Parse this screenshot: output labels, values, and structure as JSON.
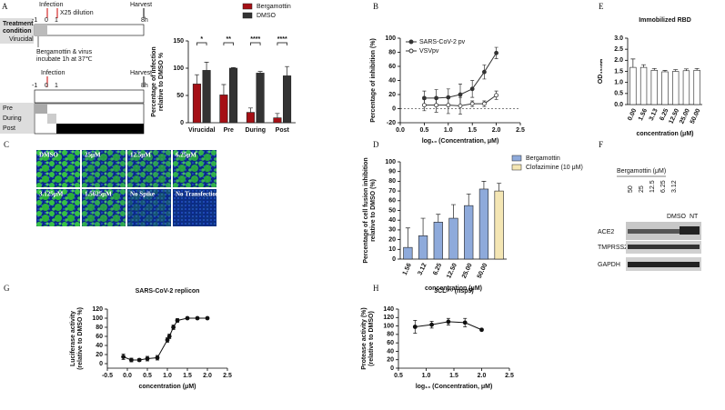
{
  "chart_data": [
    {
      "type": "bar",
      "categories": [
        "Virucidal",
        "Pre",
        "During",
        "Post"
      ],
      "series": [
        {
          "name": "Bergamottin",
          "color": "#a50f15",
          "values": [
            71,
            51,
            19,
            9
          ],
          "errors": [
            17,
            19,
            8,
            8
          ]
        },
        {
          "name": "DMSO",
          "color": "#333333",
          "values": [
            96,
            100,
            91,
            86
          ],
          "errors": [
            15,
            1,
            3,
            17
          ]
        }
      ],
      "annotations": [
        "*",
        "**",
        "****",
        "****"
      ],
      "ylabel": [
        "Percentage of infection",
        "relative to DMSO %"
      ],
      "ylim": [
        0,
        150
      ],
      "yticks": [
        0,
        50,
        100,
        150
      ],
      "legend": "top-outside"
    },
    {
      "type": "line",
      "x": [
        0.5,
        0.75,
        1.0,
        1.25,
        1.5,
        1.75,
        2.0
      ],
      "series": [
        {
          "name": "SARS-CoV-2 pv",
          "color": "#333333",
          "marker": "filled",
          "values": [
            15,
            15,
            16,
            20,
            28,
            52,
            79
          ],
          "errors": [
            10,
            12,
            12,
            15,
            12,
            10,
            8
          ]
        },
        {
          "name": "VSVpv",
          "color": "#333333",
          "marker": "open",
          "values": [
            5,
            5,
            5,
            4,
            7,
            7,
            19
          ],
          "errors": [
            8,
            10,
            12,
            12,
            4,
            4,
            6
          ]
        }
      ],
      "xlabel": "log₁₀ (Concentration, μM)",
      "ylabel": [
        "Percentage of inhibition (%)"
      ],
      "xlim": [
        0,
        2.5
      ],
      "xticks": [
        {
          "value": 0,
          "label": "0.0"
        },
        0.5,
        {
          "value": 1,
          "label": "1.0"
        },
        1.5,
        {
          "value": 2,
          "label": "2.0"
        },
        2.5
      ],
      "ylim": [
        -20,
        100
      ],
      "yticks": [
        -20,
        0,
        20,
        40,
        60,
        80,
        100
      ],
      "legend": "top-left"
    },
    {
      "type": "bar",
      "title": "Immobilized RBD",
      "categories": [
        "0.00",
        "1.56",
        "3.13",
        "6.25",
        "12.50",
        "25.00",
        "50.00"
      ],
      "values": [
        1.68,
        1.68,
        1.55,
        1.48,
        1.5,
        1.53,
        1.55
      ],
      "errors": [
        0.38,
        0.12,
        0.08,
        0.06,
        0.08,
        0.08,
        0.08
      ],
      "color": "#ffffff",
      "ylabel": [
        "OD₄₅₀ₙₘ"
      ],
      "xlabel": "concentration (μM)",
      "ylim": [
        0,
        3
      ],
      "yticks": [
        {
          "value": 0,
          "label": "0.0"
        },
        0.5,
        {
          "value": 1,
          "label": "1.0"
        },
        1.5,
        {
          "value": 2,
          "label": "2.0"
        },
        2.5,
        {
          "value": 3,
          "label": "3.0"
        }
      ]
    },
    {
      "type": "bar",
      "categories": [
        "1.56",
        "3.12",
        "6.25",
        "12.50",
        "25.00",
        "50.00",
        null
      ],
      "series": [
        {
          "name": "Bergamottin",
          "color": "#8eaadb",
          "values": [
            12,
            24,
            38,
            42,
            55,
            72,
            null
          ],
          "errors": [
            20,
            18,
            8,
            14,
            12,
            8,
            null
          ]
        },
        {
          "name": "Clofazimine (10 μM)",
          "color": "#f4e6b4",
          "values": [
            null,
            null,
            null,
            null,
            null,
            null,
            70
          ],
          "errors": [
            null,
            null,
            null,
            null,
            null,
            null,
            8
          ]
        }
      ],
      "ylabel": [
        "Percentage of cell fusion inhibition",
        "relative to DMSO (%)"
      ],
      "xlabel": "concentration (μM)",
      "ylim": [
        0,
        100
      ],
      "yticks": [
        0,
        10,
        20,
        30,
        40,
        50,
        60,
        70,
        80,
        90,
        100
      ],
      "legend": "top-right"
    },
    {
      "type": "line",
      "title": "SARS-CoV-2 replicon",
      "x": [
        -0.1,
        0.1,
        0.3,
        0.5,
        0.75,
        1.0,
        1.05,
        1.15,
        1.25,
        1.5,
        1.75,
        2.0
      ],
      "series": [
        {
          "name": null,
          "color": "#111111",
          "marker": "filled",
          "values": [
            15,
            8,
            8,
            11,
            13,
            52,
            60,
            80,
            95,
            100,
            100,
            100
          ],
          "errors": [
            6,
            4,
            3,
            5,
            5,
            5,
            5,
            5,
            4,
            1,
            1,
            1
          ]
        }
      ],
      "ylabel": [
        "Luciferase activity",
        "(relative to DMSO %)"
      ],
      "xlabel": "concentration (μM)",
      "xlim": [
        -0.5,
        2.5
      ],
      "xticks": [
        -0.5,
        {
          "value": 0,
          "label": "0.0"
        },
        0.5,
        {
          "value": 1,
          "label": "1.0"
        },
        1.5,
        {
          "value": 2,
          "label": "2.0"
        },
        2.5
      ],
      "ylim": [
        -10,
        120
      ],
      "yticks": [
        0,
        20,
        40,
        60,
        80,
        100,
        120
      ]
    },
    {
      "type": "line",
      "title": "3CLᵖʳᵒ (nsp5)",
      "x": [
        0.8,
        1.1,
        1.4,
        1.7,
        2.0
      ],
      "series": [
        {
          "name": null,
          "color": "#111111",
          "marker": "filled",
          "values": [
            98,
            103,
            110,
            108,
            91
          ],
          "errors": [
            15,
            8,
            8,
            10,
            2
          ]
        }
      ],
      "ylabel": [
        "Protease activity (%)",
        "(relative to DMSO)"
      ],
      "xlabel": "log₁₀ (Concentration, μM)",
      "xlim": [
        0.5,
        2.5
      ],
      "xticks": [
        0.5,
        {
          "value": 1,
          "label": "1.0"
        },
        1.5,
        {
          "value": 2,
          "label": "2.0"
        },
        2.5
      ],
      "ylim": [
        0,
        140
      ],
      "yticks": [
        0,
        20,
        40,
        60,
        80,
        100,
        120,
        140
      ]
    }
  ],
  "figure": {
    "panels": [
      "A",
      "B",
      "C",
      "D",
      "E",
      "F",
      "G",
      "H"
    ],
    "diagram": {
      "infection": "Infection",
      "dilution": "X25 dilution",
      "harvest": "Harvest",
      "treatment": [
        "Treatment",
        "condition"
      ],
      "times": [
        "-1",
        "0",
        "1",
        "8h"
      ],
      "virucidal": "Virucidal",
      "note": [
        "Bergamottin & virus",
        "incubate 1h at 37℃"
      ],
      "rows": [
        "Pre",
        "During",
        "Post"
      ]
    },
    "images": [
      "DMSO",
      "25μM",
      "12.5μM",
      "6.25μM",
      "3.125μM",
      "1.5625μM",
      "No Spike",
      "No Transfection"
    ],
    "blot": {
      "treatment": "Bergamottin (μM)",
      "lanes": [
        "50",
        "25",
        "12.5",
        "6.25",
        "3.12",
        "DMSO",
        "NT"
      ],
      "proteins": [
        "ACE2",
        "TMPRSS2",
        "GAPDH"
      ]
    }
  }
}
